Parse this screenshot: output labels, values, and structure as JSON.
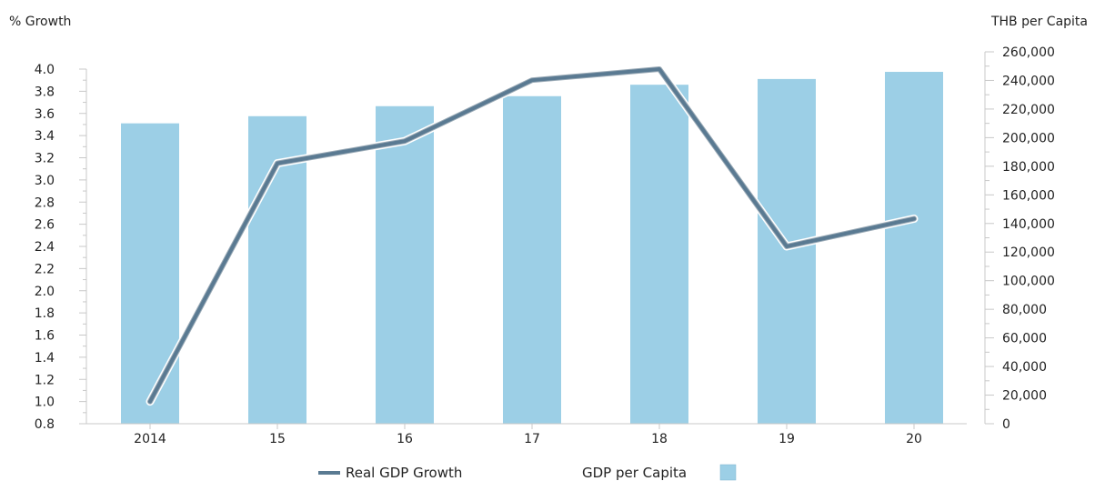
{
  "chart_data": {
    "type": "bar",
    "categories": [
      "2014",
      "15",
      "16",
      "17",
      "18",
      "19",
      "20"
    ],
    "left_axis": {
      "title": "% Growth",
      "range": [
        0.8,
        4.0
      ],
      "ticks": [
        "0.8",
        "1.0",
        "1.2",
        "1.4",
        "1.6",
        "1.8",
        "2.0",
        "2.2",
        "2.4",
        "2.6",
        "2.8",
        "3.0",
        "3.2",
        "3.4",
        "3.6",
        "3.8",
        "4.0"
      ]
    },
    "right_axis": {
      "title": "THB per Capita",
      "range": [
        0,
        260000
      ],
      "ticks": [
        "0",
        "20,000",
        "40,000",
        "60,000",
        "80,000",
        "100,000",
        "120,000",
        "140,000",
        "160,000",
        "180,000",
        "200,000",
        "220,000",
        "240,000",
        "260,000"
      ]
    },
    "series": [
      {
        "name": "GDP per Capita",
        "kind": "bar",
        "axis": "right",
        "color": "#9ccfe6",
        "values": [
          210000,
          215000,
          222000,
          229000,
          237000,
          241000,
          246000
        ]
      },
      {
        "name": "Real GDP Growth",
        "kind": "line",
        "axis": "left",
        "color": "#5a7a92",
        "values": [
          1.0,
          3.15,
          3.35,
          3.9,
          4.0,
          2.4,
          2.65
        ]
      }
    ],
    "grid": false,
    "legend_position": "bottom-center"
  }
}
